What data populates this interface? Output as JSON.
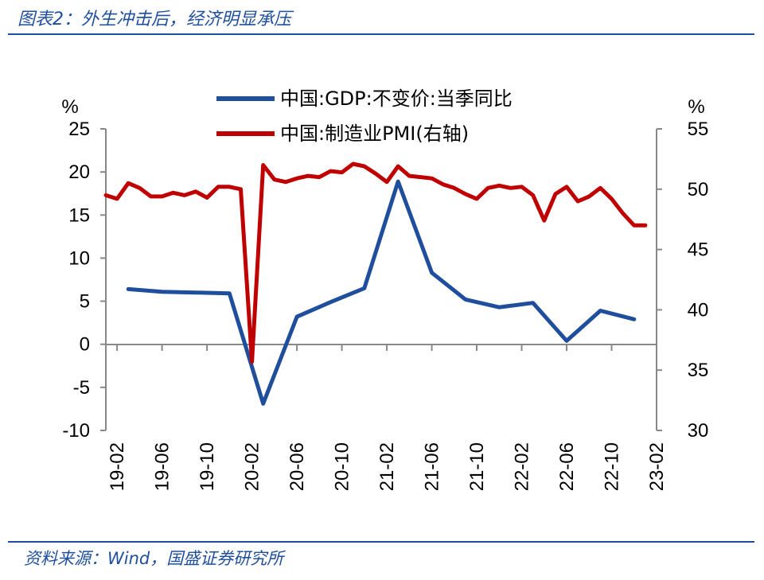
{
  "header": {
    "title": "图表2：外生冲击后，经济明显承压"
  },
  "footer": {
    "source": "资料来源：Wind，国盛证券研究所"
  },
  "chart_data": {
    "type": "line",
    "title": "",
    "left_unit": "%",
    "right_unit": "%",
    "left_ylim": [
      -10,
      25
    ],
    "right_ylim": [
      30,
      55
    ],
    "left_ticks": [
      "25",
      "20",
      "15",
      "10",
      "5",
      "0",
      "-5",
      "-10"
    ],
    "right_ticks": [
      "55",
      "50",
      "45",
      "40",
      "35",
      "30"
    ],
    "x_tick_labels": [
      "19-02",
      "19-06",
      "19-10",
      "20-02",
      "20-06",
      "20-10",
      "21-02",
      "21-06",
      "21-10",
      "22-02",
      "22-06",
      "22-10",
      "23-02"
    ],
    "legend_position": "top-center",
    "series": [
      {
        "name": "中国:GDP:不变价:当季同比",
        "axis": "left",
        "color": "#1f4e9c",
        "x": [
          "2019-03",
          "2019-06",
          "2019-09",
          "2019-12",
          "2020-03",
          "2020-06",
          "2020-09",
          "2020-12",
          "2021-03",
          "2021-06",
          "2021-09",
          "2021-12",
          "2022-03",
          "2022-06",
          "2022-09",
          "2022-12"
        ],
        "values": [
          6.4,
          6.1,
          6.0,
          5.9,
          -6.9,
          3.2,
          4.9,
          6.5,
          18.9,
          8.3,
          5.2,
          4.3,
          4.8,
          0.4,
          3.9,
          2.9
        ]
      },
      {
        "name": "中国:制造业PMI(右轴)",
        "axis": "right",
        "color": "#c00000",
        "x": [
          "2019-01",
          "2019-02",
          "2019-03",
          "2019-04",
          "2019-05",
          "2019-06",
          "2019-07",
          "2019-08",
          "2019-09",
          "2019-10",
          "2019-11",
          "2019-12",
          "2020-01",
          "2020-02",
          "2020-03",
          "2020-04",
          "2020-05",
          "2020-06",
          "2020-07",
          "2020-08",
          "2020-09",
          "2020-10",
          "2020-11",
          "2020-12",
          "2021-01",
          "2021-02",
          "2021-03",
          "2021-04",
          "2021-05",
          "2021-06",
          "2021-07",
          "2021-08",
          "2021-09",
          "2021-10",
          "2021-11",
          "2021-12",
          "2022-01",
          "2022-02",
          "2022-03",
          "2022-04",
          "2022-05",
          "2022-06",
          "2022-07",
          "2022-08",
          "2022-09",
          "2022-10",
          "2022-11",
          "2022-12",
          "2023-01"
        ],
        "values": [
          49.5,
          49.2,
          50.5,
          50.1,
          49.4,
          49.4,
          49.7,
          49.5,
          49.8,
          49.3,
          50.2,
          50.2,
          50.0,
          35.7,
          52.0,
          50.8,
          50.6,
          50.9,
          51.1,
          51.0,
          51.5,
          51.4,
          52.1,
          51.9,
          51.3,
          50.6,
          51.9,
          51.1,
          51.0,
          50.9,
          50.4,
          50.1,
          49.6,
          49.2,
          50.1,
          50.3,
          50.1,
          50.2,
          49.5,
          47.4,
          49.6,
          50.2,
          49.0,
          49.4,
          50.1,
          49.2,
          48.0,
          47.0,
          47.0
        ]
      }
    ]
  }
}
